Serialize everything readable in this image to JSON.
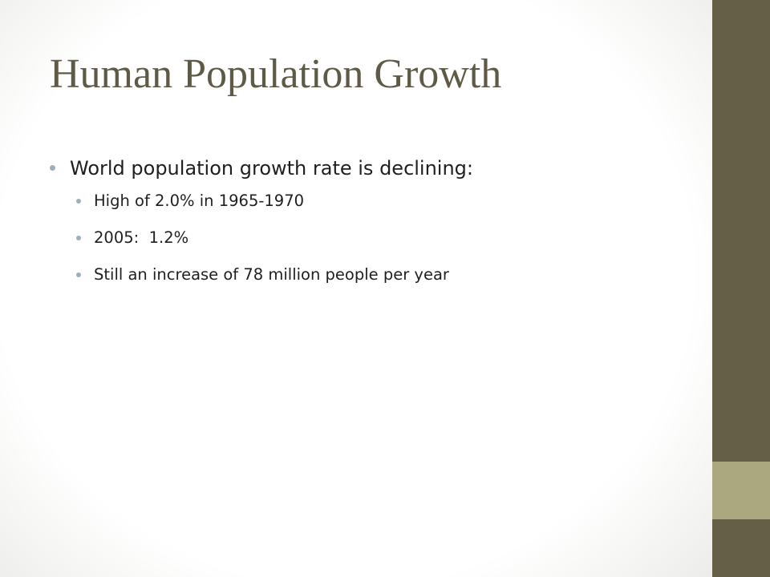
{
  "slide": {
    "title": "Human Population Growth",
    "bullets": [
      {
        "text": "World population growth rate is declining:",
        "children": [
          {
            "text": "High of 2.0% in 1965-1970"
          },
          {
            "text": "2005:  1.2%"
          },
          {
            "text": "Still an increase of 78 million people per year"
          }
        ]
      }
    ]
  },
  "colors": {
    "title": "#5e5a46",
    "body_text": "#1f1f1f",
    "bullet_marker": "#9ab0bf",
    "sidebar_dark": "#665f48",
    "sidebar_light": "#aba77f"
  }
}
